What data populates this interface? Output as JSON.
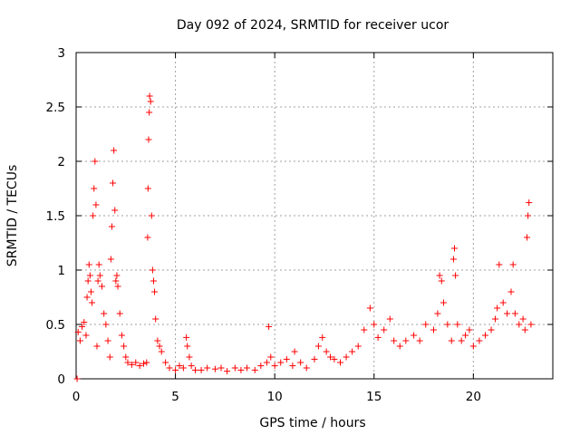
{
  "chart_data": {
    "type": "scatter",
    "title": "Day 092 of 2024, SRMTID for receiver ucor",
    "xlabel": "GPS time / hours",
    "ylabel": "SRMTID / TECUs",
    "xlim": [
      0,
      24
    ],
    "ylim": [
      0,
      3
    ],
    "xticks": [
      0,
      5,
      10,
      15,
      20
    ],
    "xtick_labels": [
      "0",
      "5",
      "10",
      "15",
      "20"
    ],
    "yticks": [
      0,
      0.5,
      1,
      1.5,
      2,
      2.5,
      3
    ],
    "ytick_labels": [
      "0",
      "0.5",
      "1",
      "1.5",
      "2",
      "2.5",
      "3"
    ],
    "grid": true,
    "marker": "+",
    "color": "#ff0000",
    "series": [
      {
        "name": "SRMTID",
        "points": [
          [
            0.05,
            0.0
          ],
          [
            0.1,
            0.43
          ],
          [
            0.2,
            0.35
          ],
          [
            0.3,
            0.48
          ],
          [
            0.4,
            0.52
          ],
          [
            0.5,
            0.4
          ],
          [
            0.55,
            0.75
          ],
          [
            0.6,
            0.9
          ],
          [
            0.65,
            1.05
          ],
          [
            0.7,
            0.95
          ],
          [
            0.75,
            0.8
          ],
          [
            0.8,
            0.7
          ],
          [
            0.85,
            1.5
          ],
          [
            0.9,
            1.75
          ],
          [
            0.95,
            2.0
          ],
          [
            1.0,
            1.6
          ],
          [
            1.05,
            0.3
          ],
          [
            1.1,
            0.9
          ],
          [
            1.15,
            1.05
          ],
          [
            1.2,
            0.95
          ],
          [
            1.3,
            0.85
          ],
          [
            1.4,
            0.6
          ],
          [
            1.5,
            0.5
          ],
          [
            1.6,
            0.35
          ],
          [
            1.7,
            0.2
          ],
          [
            1.75,
            1.1
          ],
          [
            1.8,
            1.4
          ],
          [
            1.85,
            1.8
          ],
          [
            1.9,
            2.1
          ],
          [
            1.95,
            1.55
          ],
          [
            2.0,
            0.9
          ],
          [
            2.05,
            0.95
          ],
          [
            2.1,
            0.85
          ],
          [
            2.2,
            0.6
          ],
          [
            2.3,
            0.4
          ],
          [
            2.4,
            0.3
          ],
          [
            2.5,
            0.2
          ],
          [
            2.6,
            0.15
          ],
          [
            2.8,
            0.13
          ],
          [
            3.0,
            0.15
          ],
          [
            3.2,
            0.12
          ],
          [
            3.4,
            0.14
          ],
          [
            3.55,
            0.15
          ],
          [
            3.6,
            1.3
          ],
          [
            3.62,
            1.75
          ],
          [
            3.65,
            2.2
          ],
          [
            3.68,
            2.45
          ],
          [
            3.7,
            2.6
          ],
          [
            3.75,
            2.55
          ],
          [
            3.8,
            1.5
          ],
          [
            3.85,
            1.0
          ],
          [
            3.9,
            0.9
          ],
          [
            3.95,
            0.8
          ],
          [
            4.0,
            0.55
          ],
          [
            4.1,
            0.35
          ],
          [
            4.2,
            0.3
          ],
          [
            4.3,
            0.25
          ],
          [
            4.5,
            0.15
          ],
          [
            4.7,
            0.1
          ],
          [
            5.0,
            0.08
          ],
          [
            5.2,
            0.12
          ],
          [
            5.4,
            0.1
          ],
          [
            5.55,
            0.38
          ],
          [
            5.6,
            0.3
          ],
          [
            5.7,
            0.2
          ],
          [
            5.8,
            0.12
          ],
          [
            6.0,
            0.08
          ],
          [
            6.3,
            0.08
          ],
          [
            6.6,
            0.1
          ],
          [
            7.0,
            0.09
          ],
          [
            7.3,
            0.1
          ],
          [
            7.6,
            0.07
          ],
          [
            8.0,
            0.1
          ],
          [
            8.3,
            0.08
          ],
          [
            8.6,
            0.1
          ],
          [
            9.0,
            0.08
          ],
          [
            9.3,
            0.12
          ],
          [
            9.6,
            0.15
          ],
          [
            9.7,
            0.48
          ],
          [
            9.8,
            0.2
          ],
          [
            10.0,
            0.12
          ],
          [
            10.3,
            0.15
          ],
          [
            10.6,
            0.18
          ],
          [
            10.9,
            0.12
          ],
          [
            11.0,
            0.25
          ],
          [
            11.3,
            0.15
          ],
          [
            11.6,
            0.1
          ],
          [
            12.0,
            0.18
          ],
          [
            12.2,
            0.3
          ],
          [
            12.4,
            0.38
          ],
          [
            12.6,
            0.25
          ],
          [
            12.8,
            0.2
          ],
          [
            13.0,
            0.18
          ],
          [
            13.3,
            0.15
          ],
          [
            13.6,
            0.2
          ],
          [
            13.9,
            0.25
          ],
          [
            14.2,
            0.3
          ],
          [
            14.5,
            0.45
          ],
          [
            14.8,
            0.65
          ],
          [
            15.0,
            0.5
          ],
          [
            15.2,
            0.38
          ],
          [
            15.5,
            0.45
          ],
          [
            15.8,
            0.55
          ],
          [
            16.0,
            0.35
          ],
          [
            16.3,
            0.3
          ],
          [
            16.6,
            0.35
          ],
          [
            17.0,
            0.4
          ],
          [
            17.3,
            0.35
          ],
          [
            17.6,
            0.5
          ],
          [
            18.0,
            0.45
          ],
          [
            18.2,
            0.6
          ],
          [
            18.3,
            0.95
          ],
          [
            18.4,
            0.9
          ],
          [
            18.5,
            0.7
          ],
          [
            18.7,
            0.5
          ],
          [
            18.9,
            0.35
          ],
          [
            19.0,
            1.1
          ],
          [
            19.05,
            1.2
          ],
          [
            19.1,
            0.95
          ],
          [
            19.2,
            0.5
          ],
          [
            19.4,
            0.35
          ],
          [
            19.6,
            0.4
          ],
          [
            19.8,
            0.45
          ],
          [
            20.0,
            0.3
          ],
          [
            20.3,
            0.35
          ],
          [
            20.6,
            0.4
          ],
          [
            20.9,
            0.45
          ],
          [
            21.1,
            0.55
          ],
          [
            21.2,
            0.65
          ],
          [
            21.3,
            1.05
          ],
          [
            21.5,
            0.7
          ],
          [
            21.7,
            0.6
          ],
          [
            21.9,
            0.8
          ],
          [
            22.0,
            1.05
          ],
          [
            22.1,
            0.6
          ],
          [
            22.3,
            0.5
          ],
          [
            22.5,
            0.55
          ],
          [
            22.6,
            0.45
          ],
          [
            22.7,
            1.3
          ],
          [
            22.75,
            1.5
          ],
          [
            22.8,
            1.62
          ],
          [
            22.9,
            0.5
          ]
        ]
      }
    ]
  }
}
